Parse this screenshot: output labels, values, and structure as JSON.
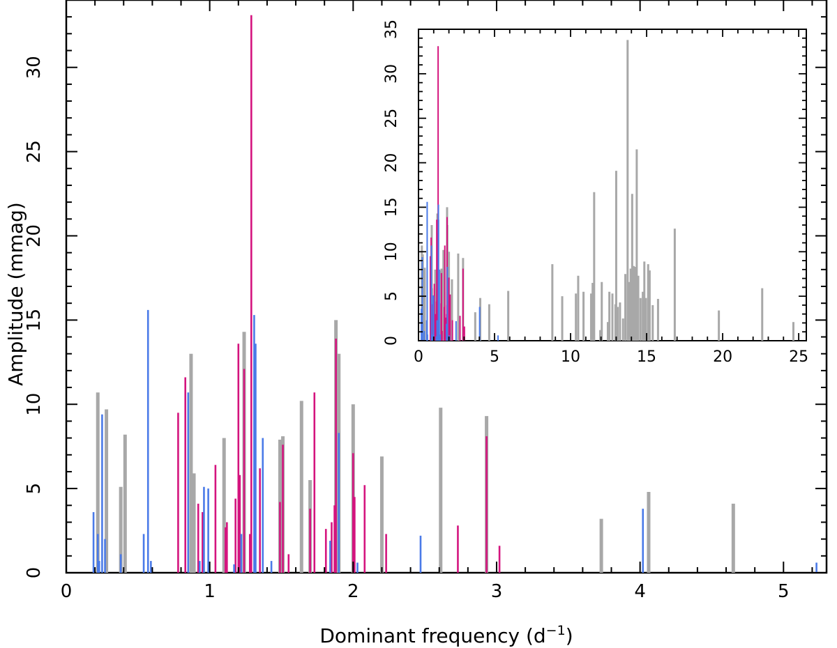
{
  "colors": {
    "gray": "#a8a8a8",
    "magenta": "#d4147e",
    "blue": "#4a7ae8",
    "axis": "#000000"
  },
  "chart_data": [
    {
      "id": "main",
      "type": "bar",
      "xlabel_base": "Dominant frequency (d",
      "xlabel_sup": "−1",
      "xlabel_close": ")",
      "ylabel": "Amplitude (mmag)",
      "xlim": [
        0,
        5.3
      ],
      "ylim": [
        0,
        34
      ],
      "xticks": [
        0,
        1,
        2,
        3,
        4,
        5
      ],
      "yticks": [
        0,
        5,
        10,
        15,
        20,
        25,
        30
      ],
      "series": [
        {
          "color_key": "gray",
          "points": [
            [
              0.22,
              10.7
            ],
            [
              0.28,
              9.7
            ],
            [
              0.38,
              5.1
            ],
            [
              0.41,
              8.2
            ],
            [
              0.87,
              13.0
            ],
            [
              0.89,
              5.9
            ],
            [
              1.1,
              8.0
            ],
            [
              1.24,
              14.3
            ],
            [
              1.49,
              7.9
            ],
            [
              1.51,
              8.1
            ],
            [
              1.64,
              10.2
            ],
            [
              1.7,
              5.5
            ],
            [
              1.88,
              15.0
            ],
            [
              1.9,
              13.0
            ],
            [
              2.0,
              10.0
            ],
            [
              2.2,
              6.9
            ],
            [
              2.61,
              9.8
            ],
            [
              2.93,
              9.3
            ],
            [
              3.73,
              3.2
            ],
            [
              4.06,
              4.8
            ],
            [
              4.65,
              4.1
            ]
          ]
        },
        {
          "color_key": "magenta",
          "points": [
            [
              0.78,
              9.5
            ],
            [
              0.83,
              11.6
            ],
            [
              0.92,
              4.1
            ],
            [
              0.95,
              3.6
            ],
            [
              1.04,
              6.4
            ],
            [
              1.11,
              2.7
            ],
            [
              1.12,
              3.0
            ],
            [
              1.18,
              4.4
            ],
            [
              1.2,
              13.6
            ],
            [
              1.21,
              5.8
            ],
            [
              1.24,
              12.1
            ],
            [
              1.28,
              2.3
            ],
            [
              1.29,
              33.1
            ],
            [
              1.35,
              6.2
            ],
            [
              1.49,
              4.2
            ],
            [
              1.51,
              7.6
            ],
            [
              1.55,
              1.1
            ],
            [
              1.7,
              3.8
            ],
            [
              1.73,
              10.7
            ],
            [
              1.81,
              2.6
            ],
            [
              1.85,
              3.0
            ],
            [
              1.87,
              4.0
            ],
            [
              1.88,
              13.9
            ],
            [
              2.0,
              7.1
            ],
            [
              2.01,
              4.5
            ],
            [
              2.08,
              5.2
            ],
            [
              2.23,
              2.3
            ],
            [
              2.73,
              2.8
            ],
            [
              2.93,
              8.1
            ],
            [
              3.02,
              1.6
            ]
          ]
        },
        {
          "color_key": "blue",
          "points": [
            [
              0.19,
              3.6
            ],
            [
              0.22,
              2.3
            ],
            [
              0.23,
              0.7
            ],
            [
              0.25,
              9.4
            ],
            [
              0.27,
              2.0
            ],
            [
              0.38,
              1.1
            ],
            [
              0.54,
              2.3
            ],
            [
              0.57,
              15.6
            ],
            [
              0.59,
              0.7
            ],
            [
              0.85,
              10.7
            ],
            [
              0.93,
              0.7
            ],
            [
              0.96,
              5.1
            ],
            [
              0.99,
              5.0
            ],
            [
              1.17,
              0.5
            ],
            [
              1.22,
              2.3
            ],
            [
              1.31,
              15.3
            ],
            [
              1.32,
              13.6
            ],
            [
              1.37,
              8.0
            ],
            [
              1.43,
              0.7
            ],
            [
              1.84,
              1.9
            ],
            [
              1.9,
              8.3
            ],
            [
              2.03,
              0.6
            ],
            [
              2.47,
              2.2
            ],
            [
              4.02,
              3.8
            ],
            [
              5.23,
              0.6
            ]
          ]
        }
      ]
    },
    {
      "id": "inset",
      "type": "bar",
      "xlim": [
        0,
        25.5
      ],
      "ylim": [
        0,
        35
      ],
      "xticks": [
        0,
        5,
        10,
        15,
        20,
        25
      ],
      "yticks": [
        0,
        5,
        10,
        15,
        20,
        25,
        30,
        35
      ],
      "series": [
        {
          "color_key": "gray",
          "points": [
            [
              0.22,
              10.7
            ],
            [
              0.28,
              9.7
            ],
            [
              0.38,
              5.1
            ],
            [
              0.41,
              8.2
            ],
            [
              0.87,
              13.0
            ],
            [
              0.89,
              5.9
            ],
            [
              1.1,
              8.0
            ],
            [
              1.24,
              14.3
            ],
            [
              1.49,
              7.9
            ],
            [
              1.51,
              8.1
            ],
            [
              1.64,
              10.2
            ],
            [
              1.7,
              5.5
            ],
            [
              1.88,
              15.0
            ],
            [
              1.9,
              13.0
            ],
            [
              2.0,
              10.0
            ],
            [
              2.2,
              6.9
            ],
            [
              2.61,
              9.8
            ],
            [
              2.93,
              9.3
            ],
            [
              3.73,
              3.2
            ],
            [
              4.06,
              4.8
            ],
            [
              4.65,
              4.1
            ],
            [
              5.9,
              5.6
            ],
            [
              8.8,
              8.6
            ],
            [
              9.45,
              5.0
            ],
            [
              10.35,
              5.3
            ],
            [
              10.5,
              7.3
            ],
            [
              10.85,
              5.5
            ],
            [
              11.35,
              5.3
            ],
            [
              11.45,
              6.5
            ],
            [
              11.55,
              16.7
            ],
            [
              11.95,
              1.2
            ],
            [
              12.05,
              6.6
            ],
            [
              12.45,
              2.1
            ],
            [
              12.55,
              5.5
            ],
            [
              12.75,
              5.3
            ],
            [
              12.95,
              4.1
            ],
            [
              13.0,
              19.1
            ],
            [
              13.1,
              3.8
            ],
            [
              13.25,
              4.3
            ],
            [
              13.45,
              2.5
            ],
            [
              13.6,
              7.5
            ],
            [
              13.75,
              33.8
            ],
            [
              13.85,
              6.6
            ],
            [
              13.95,
              8.1
            ],
            [
              14.05,
              16.5
            ],
            [
              14.15,
              8.4
            ],
            [
              14.25,
              8.3
            ],
            [
              14.35,
              21.5
            ],
            [
              14.45,
              7.3
            ],
            [
              14.6,
              4.8
            ],
            [
              14.75,
              5.5
            ],
            [
              14.85,
              8.9
            ],
            [
              14.95,
              4.8
            ],
            [
              15.1,
              8.6
            ],
            [
              15.2,
              7.9
            ],
            [
              15.4,
              4.0
            ],
            [
              15.75,
              4.7
            ],
            [
              16.85,
              12.6
            ],
            [
              19.75,
              3.4
            ],
            [
              22.6,
              5.9
            ],
            [
              24.65,
              2.1
            ]
          ]
        },
        {
          "color_key": "magenta",
          "points": [
            [
              0.78,
              9.5
            ],
            [
              0.83,
              11.6
            ],
            [
              0.92,
              4.1
            ],
            [
              0.95,
              3.6
            ],
            [
              1.04,
              6.4
            ],
            [
              1.11,
              2.7
            ],
            [
              1.12,
              3.0
            ],
            [
              1.18,
              4.4
            ],
            [
              1.2,
              13.6
            ],
            [
              1.21,
              5.8
            ],
            [
              1.24,
              12.1
            ],
            [
              1.28,
              2.3
            ],
            [
              1.29,
              33.1
            ],
            [
              1.35,
              6.2
            ],
            [
              1.49,
              4.2
            ],
            [
              1.51,
              7.6
            ],
            [
              1.55,
              1.1
            ],
            [
              1.7,
              3.8
            ],
            [
              1.73,
              10.7
            ],
            [
              1.81,
              2.6
            ],
            [
              1.85,
              3.0
            ],
            [
              1.87,
              4.0
            ],
            [
              1.88,
              13.9
            ],
            [
              2.0,
              7.1
            ],
            [
              2.01,
              4.5
            ],
            [
              2.08,
              5.2
            ],
            [
              2.23,
              2.3
            ],
            [
              2.73,
              2.8
            ],
            [
              2.93,
              8.1
            ],
            [
              3.02,
              1.6
            ]
          ]
        },
        {
          "color_key": "blue",
          "points": [
            [
              0.19,
              3.6
            ],
            [
              0.22,
              2.3
            ],
            [
              0.23,
              0.7
            ],
            [
              0.25,
              9.4
            ],
            [
              0.27,
              2.0
            ],
            [
              0.38,
              1.1
            ],
            [
              0.54,
              2.3
            ],
            [
              0.57,
              15.6
            ],
            [
              0.59,
              0.7
            ],
            [
              0.85,
              10.7
            ],
            [
              0.93,
              0.7
            ],
            [
              0.96,
              5.1
            ],
            [
              0.99,
              5.0
            ],
            [
              1.17,
              0.5
            ],
            [
              1.22,
              2.3
            ],
            [
              1.31,
              15.3
            ],
            [
              1.32,
              13.6
            ],
            [
              1.37,
              8.0
            ],
            [
              1.43,
              0.7
            ],
            [
              1.84,
              1.9
            ],
            [
              1.9,
              8.3
            ],
            [
              2.03,
              0.6
            ],
            [
              2.47,
              2.2
            ],
            [
              4.02,
              3.8
            ],
            [
              5.23,
              0.6
            ]
          ]
        }
      ]
    }
  ]
}
